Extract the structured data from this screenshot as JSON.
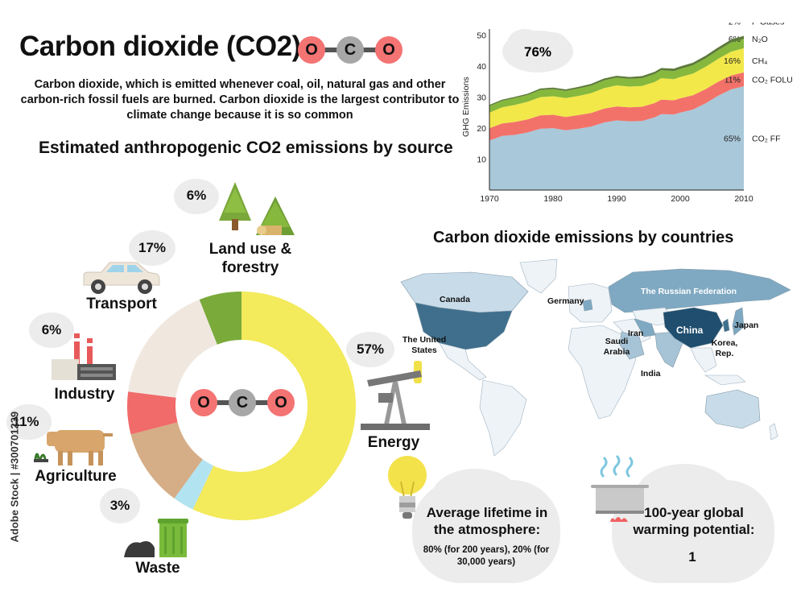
{
  "title": "Carbon dioxide (CO2)",
  "molecule": {
    "atoms": [
      "O",
      "C",
      "O"
    ]
  },
  "intro": "Carbon dioxide, which is emitted whenever coal, oil, natural gas and other carbon-rich fossil fuels are burned. Carbon dioxide is the largest contributor to climate change because it is so common",
  "sources_heading": "Estimated anthropogenic CO2 emissions by source",
  "countries_heading": "Carbon dioxide emissions by countries",
  "sources": [
    {
      "label": "Land use &\nforestry",
      "pct": "6%",
      "icon": "trees-icon"
    },
    {
      "label": "Transport",
      "pct": "17%",
      "icon": "car-icon"
    },
    {
      "label": "Industry",
      "pct": "6%",
      "icon": "factory-icon"
    },
    {
      "label": "Agriculture",
      "pct": "11%",
      "icon": "cow-icon"
    },
    {
      "label": "Waste",
      "pct": "3%",
      "icon": "trash-bin-icon"
    },
    {
      "label": "Energy",
      "pct": "57%",
      "icon": "oil-pump-icon"
    }
  ],
  "chart_data": [
    {
      "type": "pie",
      "title": "Estimated anthropogenic CO2 emissions by source",
      "slices": [
        {
          "label": "Energy",
          "value": 57,
          "color": "#f3ea5c"
        },
        {
          "label": "Waste",
          "value": 3,
          "color": "#b2e3f0"
        },
        {
          "label": "Agriculture",
          "value": 11,
          "color": "#d5ad86"
        },
        {
          "label": "Industry",
          "value": 6,
          "color": "#f16b6b"
        },
        {
          "label": "Transport",
          "value": 17,
          "color": "#f0e8df"
        },
        {
          "label": "Land use & forestry",
          "value": 6,
          "color": "#7aaa3a"
        }
      ]
    },
    {
      "type": "area",
      "ylabel": "GHG Emissions",
      "xlim": [
        1970,
        2010
      ],
      "ylim": [
        0,
        52
      ],
      "x_ticks": [
        1970,
        1980,
        1990,
        2000,
        2010
      ],
      "y_ticks": [
        10,
        20,
        30,
        40,
        50
      ],
      "x": [
        1970,
        1972,
        1974,
        1976,
        1978,
        1980,
        1982,
        1984,
        1986,
        1988,
        1990,
        1992,
        1994,
        1996,
        1997,
        1999,
        2000,
        2002,
        2004,
        2006,
        2008,
        2010
      ],
      "series": [
        {
          "name": "CO₂ FF",
          "pct": "65%",
          "color": "#a9c8d9",
          "values": [
            16,
            17.5,
            17.8,
            18.6,
            19.8,
            20,
            19.3,
            19.8,
            20.5,
            21.8,
            22.5,
            22.2,
            22.3,
            23.5,
            24.5,
            24.4,
            25,
            26,
            28,
            30.5,
            32.5,
            33.5
          ]
        },
        {
          "name": "CO₂ FOLU",
          "pct": "11%",
          "color": "#f2726a",
          "values": [
            4,
            4,
            4.2,
            4.2,
            4.3,
            4.3,
            4.3,
            4.4,
            4.4,
            4.5,
            4.5,
            4.5,
            4.6,
            4.6,
            4.7,
            4.6,
            4.6,
            4.6,
            4.6,
            4.5,
            4.5,
            4.5
          ]
        },
        {
          "name": "CH₄",
          "pct": "16%",
          "color": "#f2e84a",
          "values": [
            5,
            5.2,
            5.5,
            5.7,
            5.9,
            6,
            6.1,
            6.2,
            6.4,
            6.6,
            6.8,
            6.7,
            6.7,
            6.8,
            6.9,
            6.8,
            6.9,
            7,
            7.2,
            7.4,
            7.7,
            7.8
          ]
        },
        {
          "name": "N₂O",
          "pct": "6%",
          "color": "#86b83d",
          "values": [
            2.1,
            2.1,
            2.2,
            2.2,
            2.3,
            2.3,
            2.3,
            2.4,
            2.4,
            2.5,
            2.5,
            2.5,
            2.5,
            2.6,
            2.6,
            2.6,
            2.6,
            2.7,
            2.7,
            2.8,
            2.9,
            3
          ]
        },
        {
          "name": "F-Gases",
          "pct": "2%",
          "color": "#5d7a3a",
          "values": [
            0.4,
            0.4,
            0.4,
            0.4,
            0.5,
            0.5,
            0.5,
            0.5,
            0.6,
            0.6,
            0.6,
            0.6,
            0.7,
            0.7,
            0.7,
            0.8,
            0.8,
            0.8,
            0.9,
            0.9,
            1,
            1
          ]
        }
      ],
      "annotation": "76%"
    }
  ],
  "countries": [
    "Canada",
    "Germany",
    "The Russian Federation",
    "The United States",
    "Iran",
    "Saudi Arabia",
    "China",
    "Japan",
    "Korea, Rep.",
    "India"
  ],
  "lifetime": {
    "title": "Average lifetime in the atmosphere:",
    "value": "80% (for 200 years), 20% (for 30,000 years)"
  },
  "gwp": {
    "title": "100-year global warming potential:",
    "value": "1"
  },
  "watermark": "Adobe Stock | #300701239",
  "colors": {
    "molecule_o": "#f47373",
    "molecule_c": "#9a9a9a",
    "cloud": "#ececec",
    "map_dark": "#3f6f8c",
    "map_mid": "#7fa9c2",
    "map_light": "#c8dbe8"
  }
}
